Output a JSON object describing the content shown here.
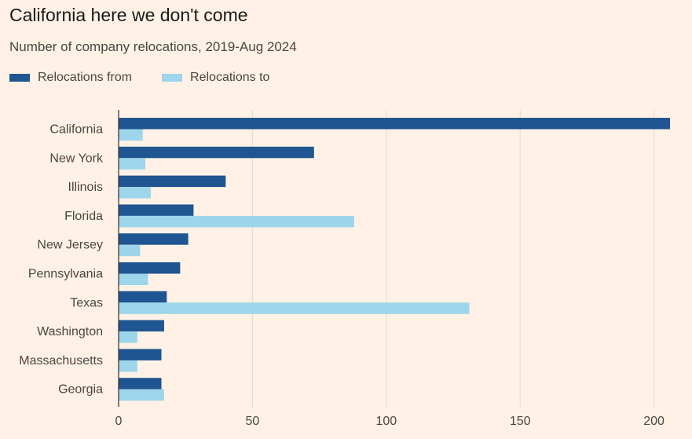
{
  "title": "California here we don't come",
  "subtitle": "Number of company relocations, 2019-Aug 2024",
  "colors": {
    "from": "#1f5590",
    "to": "#9dd6ea",
    "grid": "#e6d9ce",
    "axis": "#33302e"
  },
  "chart_data": {
    "type": "bar",
    "orientation": "horizontal",
    "categories": [
      "California",
      "New York",
      "Illinois",
      "Florida",
      "New Jersey",
      "Pennsylvania",
      "Texas",
      "Washington",
      "Massachusetts",
      "Georgia"
    ],
    "series": [
      {
        "name": "Relocations from",
        "values": [
          206,
          73,
          40,
          28,
          26,
          23,
          18,
          17,
          16,
          16
        ]
      },
      {
        "name": "Relocations to",
        "values": [
          9,
          10,
          12,
          88,
          8,
          11,
          131,
          7,
          7,
          17
        ]
      }
    ],
    "xticks": [
      0,
      50,
      100,
      150,
      200
    ],
    "xlim": [
      0,
      206
    ],
    "grid": "vertical",
    "legend": "top-left"
  }
}
